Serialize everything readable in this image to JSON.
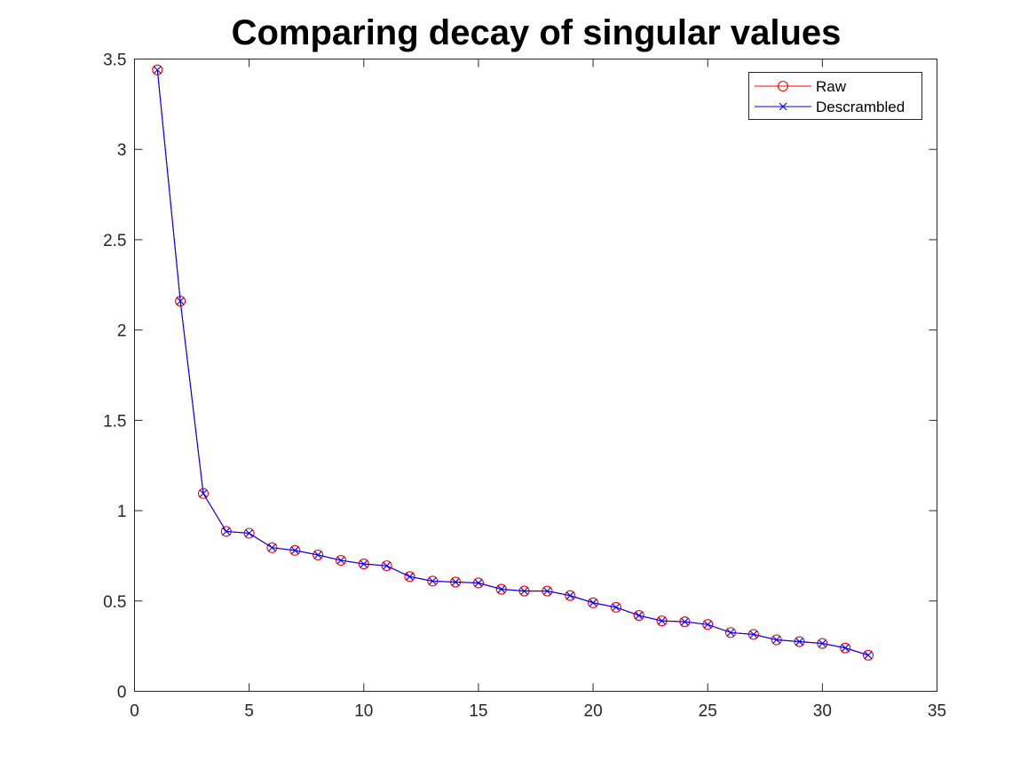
{
  "chart_data": {
    "type": "line",
    "title": "Comparing decay of singular values",
    "xlabel": "",
    "ylabel": "",
    "xlim": [
      0,
      35
    ],
    "ylim": [
      0,
      3.5
    ],
    "x_ticks": [
      "0",
      "5",
      "10",
      "15",
      "20",
      "25",
      "30",
      "35"
    ],
    "y_ticks": [
      "0",
      "0.5",
      "1",
      "1.5",
      "2",
      "2.5",
      "3",
      "3.5"
    ],
    "grid": false,
    "legend_position": "top-right",
    "x": [
      1,
      2,
      3,
      4,
      5,
      6,
      7,
      8,
      9,
      10,
      11,
      12,
      13,
      14,
      15,
      16,
      17,
      18,
      19,
      20,
      21,
      22,
      23,
      24,
      25,
      26,
      27,
      28,
      29,
      30,
      31,
      32
    ],
    "series": [
      {
        "name": "Raw",
        "color": "#ff0000",
        "marker": "circle",
        "values": [
          3.44,
          2.16,
          1.095,
          0.885,
          0.875,
          0.795,
          0.78,
          0.755,
          0.725,
          0.705,
          0.695,
          0.635,
          0.61,
          0.605,
          0.6,
          0.565,
          0.555,
          0.555,
          0.53,
          0.49,
          0.465,
          0.42,
          0.39,
          0.385,
          0.37,
          0.325,
          0.315,
          0.285,
          0.275,
          0.265,
          0.24,
          0.2
        ]
      },
      {
        "name": "Descrambled",
        "color": "#0000ff",
        "marker": "x",
        "values": [
          3.44,
          2.16,
          1.095,
          0.885,
          0.875,
          0.795,
          0.78,
          0.755,
          0.725,
          0.705,
          0.695,
          0.635,
          0.61,
          0.605,
          0.6,
          0.565,
          0.555,
          0.555,
          0.53,
          0.49,
          0.465,
          0.42,
          0.39,
          0.385,
          0.37,
          0.325,
          0.315,
          0.285,
          0.275,
          0.265,
          0.24,
          0.2
        ]
      }
    ]
  }
}
